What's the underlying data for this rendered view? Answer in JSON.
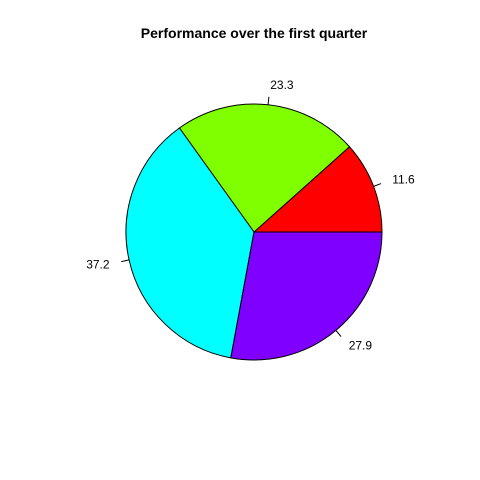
{
  "chart_data": {
    "type": "pie",
    "title": "Performance over the first quarter",
    "values": [
      11.6,
      23.3,
      37.2,
      27.9
    ],
    "labels": [
      "11.6",
      "23.3",
      "37.2",
      "27.9"
    ],
    "colors": [
      "#ff0000",
      "#80ff00",
      "#00ffff",
      "#8000ff"
    ],
    "start_angle_deg": 0,
    "direction": "counterclockwise"
  }
}
